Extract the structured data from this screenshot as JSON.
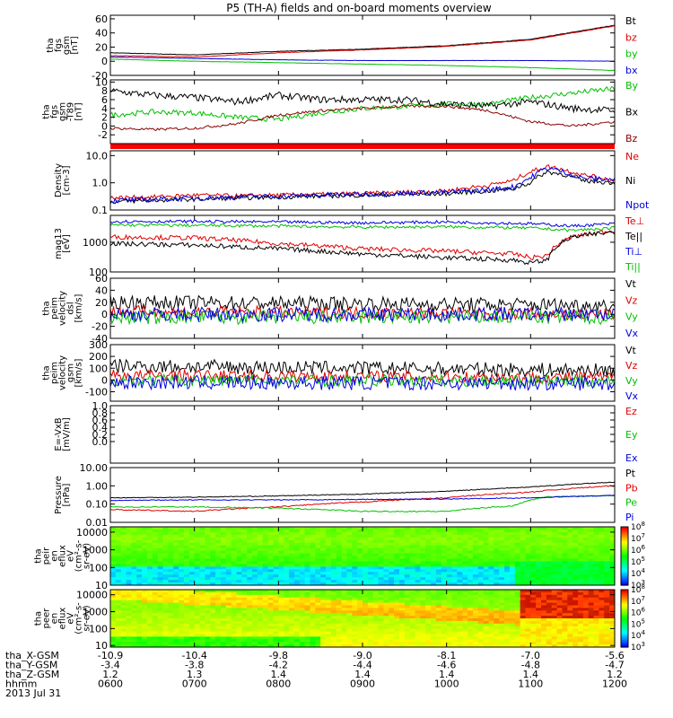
{
  "title": "P5 (TH-A) fields and on-board moments overview",
  "date_label": "2013 Jul 31",
  "colors": {
    "black": "#000000",
    "red": "#e00000",
    "green": "#00c000",
    "blue": "#0000e0",
    "darkred": "#8b0000",
    "spectrum_bar": "#ff0000"
  },
  "chart_data": [
    {
      "type": "line",
      "id": "fgs",
      "ylabel": [
        "tha",
        "fgs",
        "gsm",
        "[nT]"
      ],
      "ylim": [
        -20,
        65
      ],
      "yticks": [
        -20,
        0,
        20,
        40,
        60
      ],
      "ytick_labels": [
        "-20",
        "0",
        "20",
        "40",
        "60"
      ],
      "series": [
        {
          "name": "Bt",
          "color": "#000000",
          "x": [
            6.0,
            7.0,
            8.0,
            9.0,
            10.0,
            11.0,
            12.0
          ],
          "values": [
            12,
            9,
            14,
            17,
            22,
            31,
            51
          ],
          "noise": 0.3
        },
        {
          "name": "bz",
          "color": "#e00000",
          "x": [
            6.0,
            7.0,
            8.0,
            9.0,
            10.0,
            11.0,
            12.0
          ],
          "values": [
            8,
            6,
            12,
            16,
            21,
            30,
            50
          ],
          "noise": 0.3
        },
        {
          "name": "by",
          "color": "#00c000",
          "x": [
            6.0,
            7.0,
            8.0,
            9.0,
            10.0,
            11.0,
            12.0
          ],
          "values": [
            3,
            0,
            -2,
            -4,
            -6,
            -9,
            -13
          ],
          "noise": 0.2
        },
        {
          "name": "bx",
          "color": "#0000e0",
          "x": [
            6.0,
            7.0,
            8.0,
            9.0,
            10.0,
            11.0,
            12.0
          ],
          "values": [
            6,
            4,
            2,
            1,
            1,
            1,
            0
          ],
          "noise": 0.2
        }
      ]
    },
    {
      "type": "line",
      "id": "fgs_t89",
      "ylabel": [
        "tha",
        "fgs",
        "gsm",
        "-T89",
        "[nT]"
      ],
      "ylim": [
        -4,
        10.5
      ],
      "yticks": [
        -2,
        0,
        2,
        4,
        6,
        8,
        10
      ],
      "ytick_labels": [
        "-2",
        "0",
        "2",
        "4",
        "6",
        "8",
        "10"
      ],
      "series": [
        {
          "name": "By",
          "color": "#00c000",
          "x": [
            6.0,
            6.5,
            7.0,
            7.5,
            8.0,
            8.5,
            9.0,
            9.5,
            10.0,
            10.5,
            11.0,
            11.5,
            12.0
          ],
          "values": [
            2.5,
            3.2,
            3.0,
            2.0,
            1.5,
            3.0,
            4.0,
            4.5,
            5.0,
            5.0,
            6.5,
            7.5,
            8.5
          ],
          "noise": 0.6
        },
        {
          "name": "Bx",
          "color": "#000000",
          "x": [
            6.0,
            6.5,
            7.0,
            7.5,
            8.0,
            8.5,
            9.0,
            9.5,
            10.0,
            10.5,
            11.0,
            11.5,
            12.0
          ],
          "values": [
            8.0,
            7.0,
            6.5,
            5.5,
            7.0,
            6.0,
            6.0,
            6.0,
            5.0,
            4.5,
            5.5,
            4.0,
            3.5
          ],
          "noise": 0.8
        },
        {
          "name": "Bz",
          "color": "#8b0000",
          "x": [
            6.0,
            6.5,
            7.0,
            7.5,
            8.0,
            8.5,
            9.0,
            9.5,
            10.0,
            10.5,
            11.0,
            11.5,
            12.0
          ],
          "values": [
            -0.5,
            -0.8,
            -0.5,
            0.5,
            2.5,
            3.5,
            4.0,
            4.5,
            4.5,
            3.5,
            1.0,
            0.0,
            1.0
          ],
          "noise": 0.3
        }
      ]
    },
    {
      "type": "line",
      "id": "density",
      "yscale": "log",
      "ylabel": [
        "Density",
        "[cm-3]"
      ],
      "ylim": [
        0.1,
        15
      ],
      "yticks": [
        0.1,
        1.0,
        10.0
      ],
      "ytick_labels": [
        "0.1",
        "1.0",
        "10.0"
      ],
      "series": [
        {
          "name": "Ne",
          "color": "#e00000",
          "x": [
            6.0,
            6.5,
            7.0,
            7.5,
            8.0,
            9.0,
            10.0,
            10.5,
            10.8,
            11.0,
            11.2,
            11.4,
            11.6,
            12.0
          ],
          "values": [
            0.28,
            0.3,
            0.35,
            0.33,
            0.35,
            0.4,
            0.5,
            0.8,
            1.2,
            2.5,
            4,
            3,
            2,
            1.2
          ],
          "noise": 0.08
        },
        {
          "name": "Ni",
          "color": "#000000",
          "x": [
            6.0,
            7.0,
            8.0,
            9.0,
            10.0,
            10.5,
            10.8,
            11.0,
            11.2,
            11.4,
            11.6,
            12.0
          ],
          "values": [
            0.2,
            0.25,
            0.3,
            0.35,
            0.4,
            0.5,
            0.6,
            1.0,
            2.5,
            2.0,
            1.2,
            1.0
          ],
          "noise": 0.08
        },
        {
          "name": "Npot",
          "color": "#0000e0",
          "x": [
            6.0,
            7.0,
            8.0,
            9.0,
            10.0,
            10.5,
            10.8,
            11.0,
            11.2,
            11.4,
            11.6,
            12.0
          ],
          "values": [
            0.22,
            0.27,
            0.32,
            0.38,
            0.45,
            0.55,
            0.7,
            1.5,
            3.5,
            2.5,
            1.5,
            1.3
          ],
          "noise": 0.1
        }
      ]
    },
    {
      "type": "line",
      "id": "temp",
      "yscale": "log",
      "ylabel": [
        "mag13",
        "[eV]"
      ],
      "ylim": [
        100,
        8000
      ],
      "yticks": [
        100,
        1000
      ],
      "ytick_labels": [
        "100",
        "1000"
      ],
      "series": [
        {
          "name": "Te⊥",
          "color": "#e00000",
          "x": [
            6.0,
            7.0,
            8.0,
            9.0,
            10.0,
            10.8,
            11.0,
            11.2,
            11.5,
            12.0
          ],
          "values": [
            1500,
            1400,
            900,
            600,
            500,
            400,
            300,
            350,
            1500,
            2500
          ],
          "noise": 0.08
        },
        {
          "name": "Te||",
          "color": "#000000",
          "x": [
            6.0,
            7.0,
            8.0,
            9.0,
            10.0,
            10.8,
            11.0,
            11.2,
            11.5,
            12.0
          ],
          "values": [
            900,
            800,
            600,
            400,
            300,
            250,
            200,
            250,
            1500,
            2200
          ],
          "noise": 0.08
        },
        {
          "name": "Ti⊥",
          "color": "#0000e0",
          "x": [
            6.0,
            7.0,
            8.0,
            9.0,
            10.0,
            11.0,
            11.5,
            12.0
          ],
          "values": [
            5000,
            5000,
            4800,
            4500,
            4800,
            4200,
            3500,
            4200
          ],
          "noise": 0.05
        },
        {
          "name": "Ti||",
          "color": "#00c000",
          "x": [
            6.0,
            7.0,
            8.0,
            9.0,
            10.0,
            11.0,
            11.5,
            12.0
          ],
          "values": [
            3800,
            3700,
            3500,
            3200,
            3300,
            3000,
            2500,
            3000
          ],
          "noise": 0.05
        }
      ]
    },
    {
      "type": "line",
      "id": "velocity1",
      "ylabel": [
        "tha",
        "peim",
        "velocity",
        "dsl",
        "[km/s]"
      ],
      "ylim": [
        -40,
        60
      ],
      "yticks": [
        -40,
        -20,
        0,
        20,
        40,
        60
      ],
      "ytick_labels": [
        "-40",
        "-20",
        "0",
        "20",
        "40",
        "60"
      ],
      "series": [
        {
          "name": "Vt",
          "color": "#000000",
          "x": [
            6.0,
            12.0
          ],
          "values": [
            20,
            15
          ],
          "noise": 12
        },
        {
          "name": "Vz",
          "color": "#e00000",
          "x": [
            6.0,
            12.0
          ],
          "values": [
            5,
            0
          ],
          "noise": 10
        },
        {
          "name": "Vy",
          "color": "#00c000",
          "x": [
            6.0,
            12.0
          ],
          "values": [
            -5,
            -5
          ],
          "noise": 12
        },
        {
          "name": "Vx",
          "color": "#0000e0",
          "x": [
            6.0,
            12.0
          ],
          "values": [
            0,
            0
          ],
          "noise": 12
        }
      ]
    },
    {
      "type": "line",
      "id": "velocity2",
      "ylabel": [
        "tha",
        "peim",
        "velocity",
        "gsm",
        "[km/s]"
      ],
      "ylim": [
        -180,
        300
      ],
      "yticks": [
        -100,
        0,
        100,
        200,
        300
      ],
      "ytick_labels": [
        "-100",
        "0",
        "100",
        "200",
        "300"
      ],
      "series": [
        {
          "name": "Vt",
          "color": "#000000",
          "x": [
            6.0,
            12.0
          ],
          "values": [
            120,
            80
          ],
          "noise": 60
        },
        {
          "name": "Vz",
          "color": "#e00000",
          "x": [
            6.0,
            12.0
          ],
          "values": [
            40,
            20
          ],
          "noise": 50
        },
        {
          "name": "Vy",
          "color": "#00c000",
          "x": [
            6.0,
            12.0
          ],
          "values": [
            0,
            -10
          ],
          "noise": 50
        },
        {
          "name": "Vx",
          "color": "#0000e0",
          "x": [
            6.0,
            12.0
          ],
          "values": [
            -20,
            -30
          ],
          "noise": 60
        }
      ]
    },
    {
      "type": "line",
      "id": "efield",
      "ylabel": [
        "E=-VxB",
        "[mV/m]"
      ],
      "ylim": [
        -0.6,
        1.0
      ],
      "yticks": [
        0.0,
        0.2,
        0.4,
        0.6,
        0.8,
        1.0
      ],
      "ytick_labels": [
        "0.0",
        "0.2",
        "0.4",
        "0.6",
        "0.8",
        "1.0"
      ],
      "series": [
        {
          "name": "Ez",
          "color": "#e00000"
        },
        {
          "name": "Ey",
          "color": "#00c000"
        },
        {
          "name": "Ex",
          "color": "#0000e0"
        }
      ]
    },
    {
      "type": "line",
      "id": "pressure",
      "yscale": "log",
      "ylabel": [
        "Pressure",
        "[nPa]"
      ],
      "ylim": [
        0.01,
        10
      ],
      "yticks": [
        0.01,
        0.1,
        1.0,
        10.0
      ],
      "ytick_labels": [
        "0.01",
        "0.10",
        "1.00",
        "10.00"
      ],
      "series": [
        {
          "name": "Pt",
          "color": "#000000",
          "x": [
            6.0,
            7.0,
            8.0,
            9.0,
            10.0,
            11.0,
            12.0
          ],
          "values": [
            0.22,
            0.24,
            0.28,
            0.35,
            0.5,
            0.85,
            1.6
          ],
          "noise": 0.02
        },
        {
          "name": "Pb",
          "color": "#e00000",
          "x": [
            6.0,
            7.0,
            8.0,
            9.0,
            10.0,
            11.0,
            12.0
          ],
          "values": [
            0.05,
            0.04,
            0.07,
            0.13,
            0.22,
            0.45,
            1.0
          ],
          "noise": 0.03
        },
        {
          "name": "Pe",
          "color": "#00c000",
          "x": [
            6.0,
            7.0,
            8.0,
            9.0,
            10.0,
            10.8,
            11.2,
            12.0
          ],
          "values": [
            0.07,
            0.07,
            0.06,
            0.04,
            0.04,
            0.08,
            0.25,
            0.3
          ],
          "noise": 0.03
        },
        {
          "name": "Pi",
          "color": "#0000e0",
          "x": [
            6.0,
            7.0,
            8.0,
            9.0,
            10.0,
            11.0,
            12.0
          ],
          "values": [
            0.16,
            0.17,
            0.17,
            0.18,
            0.19,
            0.22,
            0.3
          ],
          "noise": 0.02
        }
      ]
    },
    {
      "type": "heatmap",
      "id": "ion_spec",
      "yscale": "log",
      "ylabel": [
        "tha",
        "peir",
        "en",
        "eflux",
        "eV",
        "(cm²-s-",
        "sr-eV)"
      ],
      "ylim": [
        10,
        20000
      ],
      "yticks": [
        10,
        100,
        1000,
        10000
      ],
      "ytick_labels": [
        "10",
        "100",
        "1000",
        "10000"
      ],
      "colorbar": {
        "min_exp": 3,
        "max_exp": 8,
        "tick_exps": [
          3,
          4,
          5,
          6,
          7,
          8
        ]
      }
    },
    {
      "type": "heatmap",
      "id": "electron_spec",
      "yscale": "log",
      "ylabel": [
        "tha",
        "peer",
        "en",
        "eflux",
        "eV",
        "(cm²-s-",
        "sr-eV)"
      ],
      "ylim": [
        8,
        20000
      ],
      "yticks": [
        10,
        100,
        1000,
        10000
      ],
      "ytick_labels": [
        "10",
        "100",
        "1000",
        "10000"
      ],
      "colorbar": {
        "min_exp": 3,
        "max_exp": 8,
        "tick_exps": [
          3,
          4,
          5,
          6,
          7,
          8
        ]
      }
    }
  ],
  "x_axis": {
    "range": [
      6.0,
      12.0
    ],
    "ticks": [
      6.0,
      7.0,
      8.0,
      9.0,
      10.0,
      11.0,
      12.0
    ],
    "rows": [
      {
        "label": "tha_X-GSM",
        "values": [
          "-10.9",
          "-10.4",
          "-9.8",
          "-9.0",
          "-8.1",
          "-7.0",
          "-5.6"
        ]
      },
      {
        "label": "tha_Y-GSM",
        "values": [
          "-3.4",
          "-3.8",
          "-4.2",
          "-4.4",
          "-4.6",
          "-4.8",
          "-4.7"
        ]
      },
      {
        "label": "tha_Z-GSM",
        "values": [
          "1.2",
          "1.3",
          "1.4",
          "1.4",
          "1.4",
          "1.4",
          "1.2"
        ]
      },
      {
        "label": "hhmm",
        "values": [
          "0600",
          "0700",
          "0800",
          "0900",
          "1000",
          "1100",
          "1200"
        ]
      }
    ]
  }
}
